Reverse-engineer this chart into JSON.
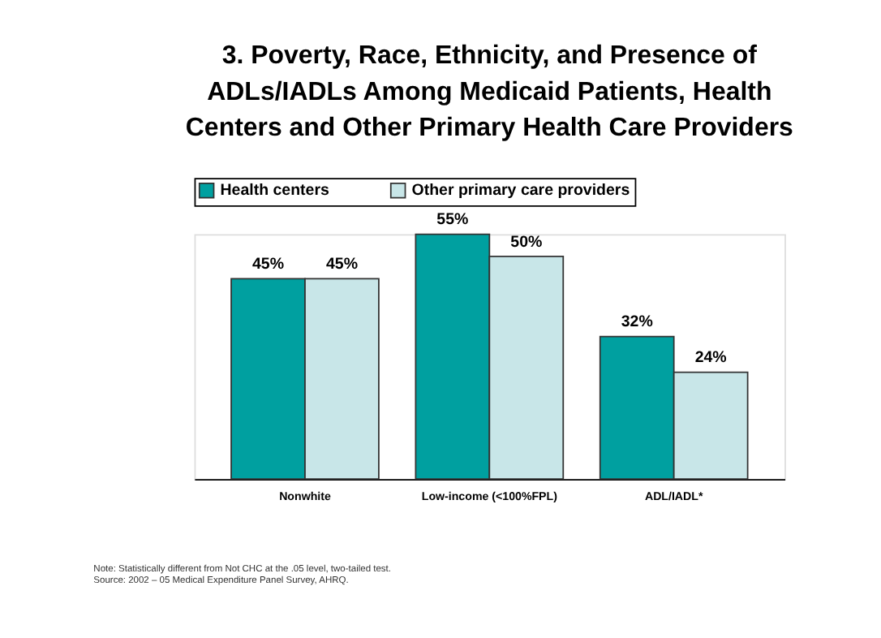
{
  "chart_data": {
    "type": "bar",
    "title": [
      "3. Poverty, Race, Ethnicity, and Presence of",
      "ADLs/IADLs  Among Medicaid Patients, Health",
      "Centers and Other Primary Health Care Providers"
    ],
    "categories": [
      "Nonwhite",
      "Low-income (<100%FPL)",
      "ADL/IADL*"
    ],
    "series": [
      {
        "name": "Health centers",
        "color": "#00a0a0",
        "values": [
          45,
          55,
          32
        ],
        "value_labels": [
          "45%",
          "55%",
          "32%"
        ]
      },
      {
        "name": "Other primary care providers",
        "color": "#c8e6e8",
        "values": [
          45,
          50,
          24
        ],
        "value_labels": [
          "45%",
          "50%",
          "24%"
        ]
      }
    ],
    "grid": false,
    "legend": "top",
    "annotations": [
      "Note: Statistically different from Not CHC at the .05 level, two-tailed test.",
      "Source: 2002 – 05 Medical Expenditure Panel Survey, AHRQ."
    ]
  }
}
